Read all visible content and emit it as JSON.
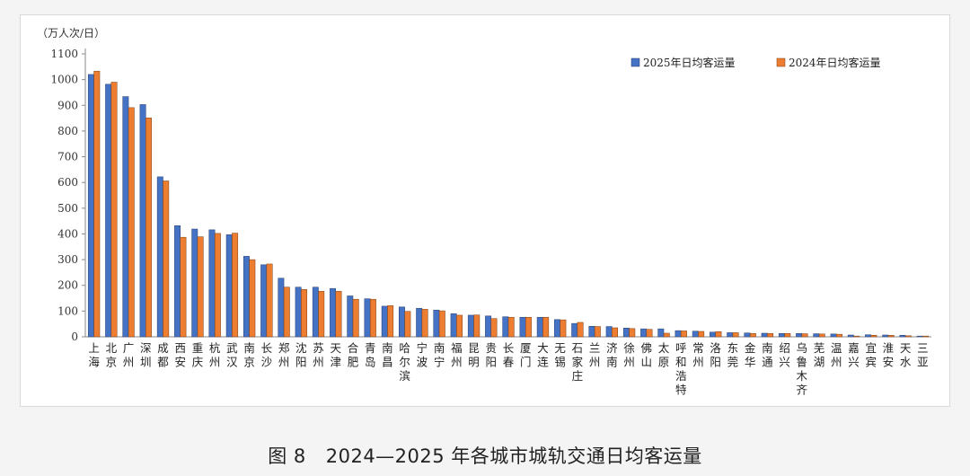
{
  "chart_data": {
    "type": "bar",
    "unit_label": "（万人次/日）",
    "ylim": [
      0,
      1100
    ],
    "yticks": [
      0,
      100,
      200,
      300,
      400,
      500,
      600,
      700,
      800,
      900,
      1000,
      1100
    ],
    "grid": false,
    "legend_position": "top-right",
    "series": [
      {
        "name": "2025年日均客运量",
        "color": "#4472c4"
      },
      {
        "name": "2024年日均客运量",
        "color": "#ed7d31"
      }
    ],
    "categories": [
      {
        "label": "上海",
        "v2025": 1020,
        "v2024": 1033
      },
      {
        "label": "北京",
        "v2025": 982,
        "v2024": 990
      },
      {
        "label": "广州",
        "v2025": 934,
        "v2024": 891
      },
      {
        "label": "深圳",
        "v2025": 903,
        "v2024": 851
      },
      {
        "label": "成都",
        "v2025": 622,
        "v2024": 606
      },
      {
        "label": "西安",
        "v2025": 432,
        "v2024": 387
      },
      {
        "label": "重庆",
        "v2025": 419,
        "v2024": 389
      },
      {
        "label": "杭州",
        "v2025": 416,
        "v2024": 402
      },
      {
        "label": "武汉",
        "v2025": 397,
        "v2024": 403
      },
      {
        "label": "南京",
        "v2025": 313,
        "v2024": 300
      },
      {
        "label": "长沙",
        "v2025": 280,
        "v2024": 283
      },
      {
        "label": "郑州",
        "v2025": 228,
        "v2024": 193
      },
      {
        "label": "沈阳",
        "v2025": 193,
        "v2024": 184
      },
      {
        "label": "苏州",
        "v2025": 193,
        "v2024": 177
      },
      {
        "label": "天津",
        "v2025": 188,
        "v2024": 177
      },
      {
        "label": "合肥",
        "v2025": 159,
        "v2024": 146
      },
      {
        "label": "青岛",
        "v2025": 148,
        "v2024": 146
      },
      {
        "label": "南昌",
        "v2025": 119,
        "v2024": 121
      },
      {
        "label": "哈尔滨",
        "v2025": 116,
        "v2024": 99
      },
      {
        "label": "宁波",
        "v2025": 111,
        "v2024": 107
      },
      {
        "label": "南宁",
        "v2025": 104,
        "v2024": 101
      },
      {
        "label": "福州",
        "v2025": 90,
        "v2024": 84
      },
      {
        "label": "昆明",
        "v2025": 84,
        "v2024": 85
      },
      {
        "label": "贵阳",
        "v2025": 81,
        "v2024": 71
      },
      {
        "label": "长春",
        "v2025": 78,
        "v2024": 76
      },
      {
        "label": "厦门",
        "v2025": 76,
        "v2024": 76
      },
      {
        "label": "大连",
        "v2025": 76,
        "v2024": 76
      },
      {
        "label": "无锡",
        "v2025": 67,
        "v2024": 66
      },
      {
        "label": "石家庄",
        "v2025": 52,
        "v2024": 56
      },
      {
        "label": "兰州",
        "v2025": 41,
        "v2024": 40
      },
      {
        "label": "济南",
        "v2025": 40,
        "v2024": 35
      },
      {
        "label": "徐州",
        "v2025": 34,
        "v2024": 32
      },
      {
        "label": "佛山",
        "v2025": 31,
        "v2024": 29
      },
      {
        "label": "太原",
        "v2025": 31,
        "v2024": 14
      },
      {
        "label": "呼和浩特",
        "v2025": 24,
        "v2024": 23
      },
      {
        "label": "常州",
        "v2025": 22,
        "v2024": 21
      },
      {
        "label": "洛阳",
        "v2025": 18,
        "v2024": 20
      },
      {
        "label": "东莞",
        "v2025": 16,
        "v2024": 16
      },
      {
        "label": "金华",
        "v2025": 15,
        "v2024": 13
      },
      {
        "label": "南通",
        "v2025": 14,
        "v2024": 13
      },
      {
        "label": "绍兴",
        "v2025": 13,
        "v2024": 13
      },
      {
        "label": "乌鲁木齐",
        "v2025": 13,
        "v2024": 12
      },
      {
        "label": "芜湖",
        "v2025": 12,
        "v2024": 11
      },
      {
        "label": "温州",
        "v2025": 11,
        "v2024": 10
      },
      {
        "label": "嘉兴",
        "v2025": 7,
        "v2024": 3
      },
      {
        "label": "宜宾",
        "v2025": 8,
        "v2024": 6
      },
      {
        "label": "淮安",
        "v2025": 7,
        "v2024": 6
      },
      {
        "label": "天水",
        "v2025": 6,
        "v2024": 4
      },
      {
        "label": "三亚",
        "v2025": 3,
        "v2024": 3
      }
    ]
  },
  "caption": {
    "figure": "图 8",
    "title": "2024—2025 年各城市城轨交通日均客运量"
  }
}
